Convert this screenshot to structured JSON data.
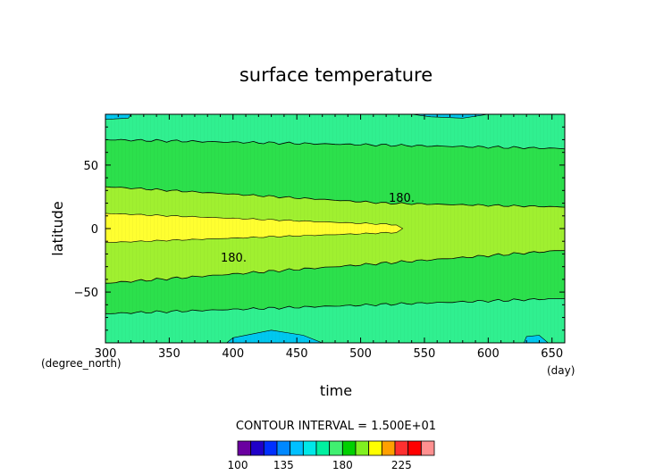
{
  "chart_data": {
    "type": "heatmap",
    "title": "surface temperature",
    "xlabel": "time",
    "ylabel": "latitude",
    "x_unit": "(day)",
    "y_unit": "(degree_north)",
    "xlim": [
      300,
      660
    ],
    "ylim": [
      -90,
      90
    ],
    "x_ticks": [
      "300",
      "350",
      "400",
      "450",
      "500",
      "550",
      "600",
      "650"
    ],
    "y_ticks": [
      "50",
      "0",
      "−50"
    ],
    "contour_interval_text": "CONTOUR INTERVAL = 1.500E+01",
    "contour_labels": [
      "180.",
      "180."
    ],
    "colorbar": {
      "tick_labels": [
        "100",
        "135",
        "180",
        "225"
      ],
      "colors": [
        "#6a00a0",
        "#2000c8",
        "#0030ff",
        "#0088ff",
        "#00c0ff",
        "#00e8e8",
        "#00f0a0",
        "#40f070",
        "#00d000",
        "#80f020",
        "#ffff00",
        "#ffa000",
        "#ff3030",
        "#ff0000",
        "#ff9090"
      ]
    },
    "colors": {
      "cold": "#00c8f0",
      "cool": "#30f090",
      "mid": "#2ce04c",
      "warm": "#a0f030",
      "hot": "#ffff30"
    }
  }
}
